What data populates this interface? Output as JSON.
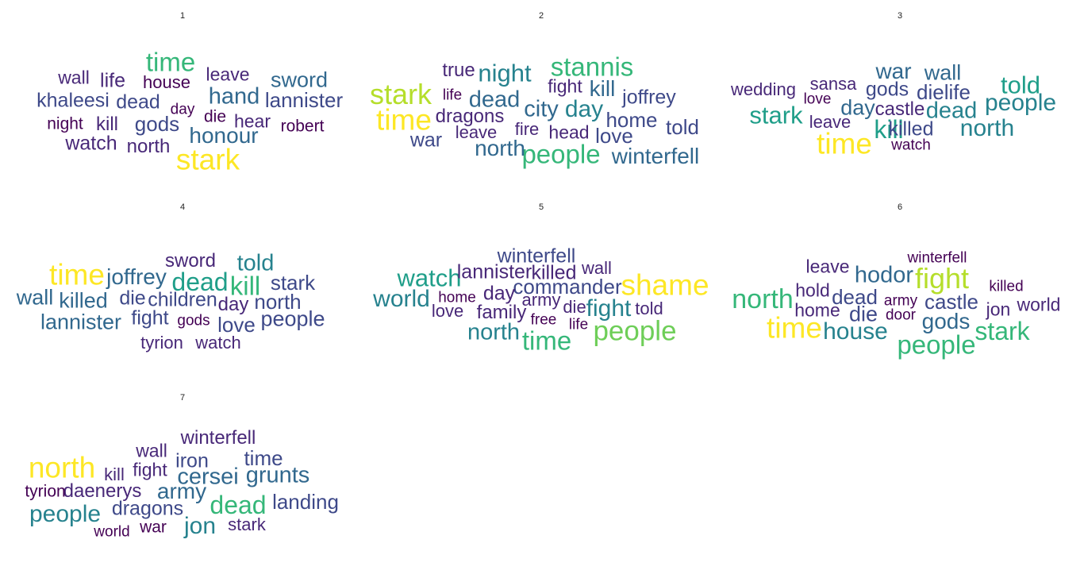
{
  "colors": {
    "viridis": [
      "#440154",
      "#482878",
      "#3e4989",
      "#31688e",
      "#26828e",
      "#1f9e89",
      "#35b779",
      "#6ece58",
      "#b5de2b",
      "#fde725"
    ]
  },
  "chart_data": [
    {
      "type": "wordcloud",
      "title": "1",
      "words": [
        {
          "text": "stark",
          "freq": 100
        },
        {
          "text": "time",
          "freq": 72
        },
        {
          "text": "hand",
          "freq": 44
        },
        {
          "text": "honour",
          "freq": 40
        },
        {
          "text": "sword",
          "freq": 38
        },
        {
          "text": "gods",
          "freq": 35
        },
        {
          "text": "lannister",
          "freq": 33
        },
        {
          "text": "khaleesi",
          "freq": 32
        },
        {
          "text": "dead",
          "freq": 31
        },
        {
          "text": "life",
          "freq": 30
        },
        {
          "text": "watch",
          "freq": 30
        },
        {
          "text": "north",
          "freq": 29
        },
        {
          "text": "kill",
          "freq": 28
        },
        {
          "text": "hear",
          "freq": 26
        },
        {
          "text": "leave",
          "freq": 25
        },
        {
          "text": "wall",
          "freq": 25
        },
        {
          "text": "house",
          "freq": 24
        },
        {
          "text": "night",
          "freq": 23
        },
        {
          "text": "robert",
          "freq": 23
        },
        {
          "text": "die",
          "freq": 23
        },
        {
          "text": "day",
          "freq": 22
        }
      ]
    },
    {
      "type": "wordcloud",
      "title": "2",
      "words": [
        {
          "text": "time",
          "freq": 60
        },
        {
          "text": "stark",
          "freq": 55
        },
        {
          "text": "people",
          "freq": 48
        },
        {
          "text": "stannis",
          "freq": 46
        },
        {
          "text": "night",
          "freq": 40
        },
        {
          "text": "day",
          "freq": 38
        },
        {
          "text": "city",
          "freq": 36
        },
        {
          "text": "dead",
          "freq": 36
        },
        {
          "text": "north",
          "freq": 34
        },
        {
          "text": "winterfell",
          "freq": 34
        },
        {
          "text": "kill",
          "freq": 34
        },
        {
          "text": "home",
          "freq": 31
        },
        {
          "text": "told",
          "freq": 31
        },
        {
          "text": "love",
          "freq": 31
        },
        {
          "text": "joffrey",
          "freq": 30
        },
        {
          "text": "war",
          "freq": 30
        },
        {
          "text": "true",
          "freq": 29
        },
        {
          "text": "dragons",
          "freq": 29
        },
        {
          "text": "fight",
          "freq": 28
        },
        {
          "text": "head",
          "freq": 28
        },
        {
          "text": "fire",
          "freq": 27
        },
        {
          "text": "leave",
          "freq": 27
        },
        {
          "text": "life",
          "freq": 26
        }
      ]
    },
    {
      "type": "wordcloud",
      "title": "3",
      "words": [
        {
          "text": "time",
          "freq": 55
        },
        {
          "text": "kill",
          "freq": 42
        },
        {
          "text": "told",
          "freq": 40
        },
        {
          "text": "stark",
          "freq": 40
        },
        {
          "text": "north",
          "freq": 38
        },
        {
          "text": "people",
          "freq": 37
        },
        {
          "text": "dead",
          "freq": 36
        },
        {
          "text": "war",
          "freq": 34
        },
        {
          "text": "wall",
          "freq": 33
        },
        {
          "text": "day",
          "freq": 33
        },
        {
          "text": "dielife",
          "freq": 31
        },
        {
          "text": "gods",
          "freq": 30
        },
        {
          "text": "killed",
          "freq": 30
        },
        {
          "text": "castle",
          "freq": 29
        },
        {
          "text": "leave",
          "freq": 28
        },
        {
          "text": "sansa",
          "freq": 28
        },
        {
          "text": "wedding",
          "freq": 28
        },
        {
          "text": "love",
          "freq": 27
        },
        {
          "text": "watch",
          "freq": 27
        }
      ]
    },
    {
      "type": "wordcloud",
      "title": "4",
      "words": [
        {
          "text": "time",
          "freq": 55
        },
        {
          "text": "kill",
          "freq": 45
        },
        {
          "text": "dead",
          "freq": 42
        },
        {
          "text": "told",
          "freq": 36
        },
        {
          "text": "joffrey",
          "freq": 34
        },
        {
          "text": "killed",
          "freq": 33
        },
        {
          "text": "wall",
          "freq": 33
        },
        {
          "text": "lannister",
          "freq": 33
        },
        {
          "text": "people",
          "freq": 32
        },
        {
          "text": "stark",
          "freq": 31
        },
        {
          "text": "north",
          "freq": 31
        },
        {
          "text": "love",
          "freq": 31
        },
        {
          "text": "children",
          "freq": 30
        },
        {
          "text": "die",
          "freq": 30
        },
        {
          "text": "fight",
          "freq": 30
        },
        {
          "text": "sword",
          "freq": 29
        },
        {
          "text": "day",
          "freq": 29
        },
        {
          "text": "watch",
          "freq": 28
        },
        {
          "text": "tyrion",
          "freq": 28
        },
        {
          "text": "gods",
          "freq": 27
        }
      ]
    },
    {
      "type": "wordcloud",
      "title": "5",
      "words": [
        {
          "text": "shame",
          "freq": 58
        },
        {
          "text": "people",
          "freq": 50
        },
        {
          "text": "time",
          "freq": 46
        },
        {
          "text": "watch",
          "freq": 40
        },
        {
          "text": "world",
          "freq": 38
        },
        {
          "text": "fight",
          "freq": 38
        },
        {
          "text": "north",
          "freq": 36
        },
        {
          "text": "commander",
          "freq": 31
        },
        {
          "text": "winterfell",
          "freq": 30
        },
        {
          "text": "lannister",
          "freq": 29
        },
        {
          "text": "killed",
          "freq": 29
        },
        {
          "text": "day",
          "freq": 29
        },
        {
          "text": "family",
          "freq": 28
        },
        {
          "text": "army",
          "freq": 27
        },
        {
          "text": "told",
          "freq": 27
        },
        {
          "text": "wall",
          "freq": 27
        },
        {
          "text": "die",
          "freq": 27
        },
        {
          "text": "love",
          "freq": 27
        },
        {
          "text": "home",
          "freq": 26
        },
        {
          "text": "free",
          "freq": 26
        },
        {
          "text": "life",
          "freq": 26
        }
      ]
    },
    {
      "type": "wordcloud",
      "title": "6",
      "words": [
        {
          "text": "time",
          "freq": 50
        },
        {
          "text": "fight",
          "freq": 48
        },
        {
          "text": "north",
          "freq": 43
        },
        {
          "text": "people",
          "freq": 42
        },
        {
          "text": "stark",
          "freq": 41
        },
        {
          "text": "house",
          "freq": 38
        },
        {
          "text": "hodor",
          "freq": 36
        },
        {
          "text": "gods",
          "freq": 35
        },
        {
          "text": "die",
          "freq": 34
        },
        {
          "text": "castle",
          "freq": 33
        },
        {
          "text": "dead",
          "freq": 33
        },
        {
          "text": "leave",
          "freq": 31
        },
        {
          "text": "hold",
          "freq": 31
        },
        {
          "text": "home",
          "freq": 31
        },
        {
          "text": "world",
          "freq": 31
        },
        {
          "text": "jon",
          "freq": 31
        },
        {
          "text": "army",
          "freq": 30
        },
        {
          "text": "door",
          "freq": 30
        },
        {
          "text": "winterfell",
          "freq": 30
        },
        {
          "text": "killed",
          "freq": 30
        }
      ]
    },
    {
      "type": "wordcloud",
      "title": "7",
      "words": [
        {
          "text": "north",
          "freq": 85
        },
        {
          "text": "dead",
          "freq": 60
        },
        {
          "text": "jon",
          "freq": 52
        },
        {
          "text": "people",
          "freq": 52
        },
        {
          "text": "grunts",
          "freq": 46
        },
        {
          "text": "cersei",
          "freq": 46
        },
        {
          "text": "army",
          "freq": 44
        },
        {
          "text": "time",
          "freq": 38
        },
        {
          "text": "landing",
          "freq": 38
        },
        {
          "text": "dragons",
          "freq": 36
        },
        {
          "text": "iron",
          "freq": 36
        },
        {
          "text": "daenerys",
          "freq": 34
        },
        {
          "text": "winterfell",
          "freq": 34
        },
        {
          "text": "wall",
          "freq": 33
        },
        {
          "text": "fight",
          "freq": 33
        },
        {
          "text": "kill",
          "freq": 32
        },
        {
          "text": "stark",
          "freq": 32
        },
        {
          "text": "war",
          "freq": 31
        },
        {
          "text": "tyrion",
          "freq": 31
        },
        {
          "text": "world",
          "freq": 30
        }
      ]
    }
  ]
}
